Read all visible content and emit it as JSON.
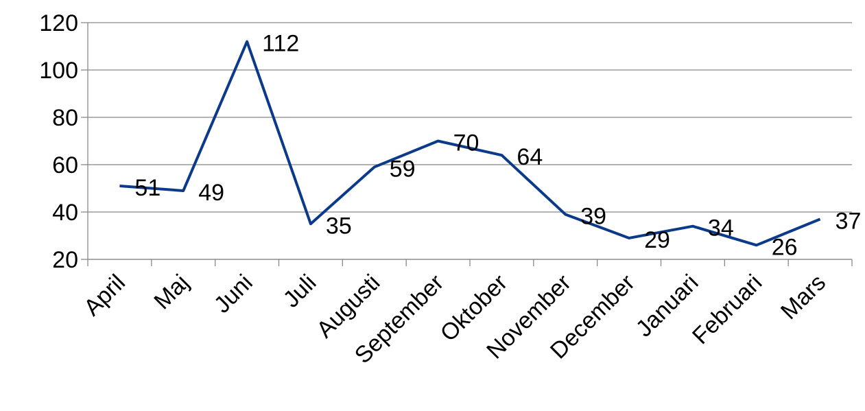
{
  "chart_data": {
    "type": "line",
    "categories": [
      "April",
      "Maj",
      "Juni",
      "Juli",
      "Augusti",
      "September",
      "Oktober",
      "November",
      "December",
      "Januari",
      "Februari",
      "Mars"
    ],
    "values": [
      51,
      49,
      112,
      35,
      59,
      70,
      64,
      39,
      29,
      34,
      26,
      37
    ],
    "color": "#0b3a8a",
    "ylim": [
      20,
      120
    ],
    "yticks": [
      20,
      40,
      60,
      80,
      100,
      120
    ],
    "grid": true
  }
}
